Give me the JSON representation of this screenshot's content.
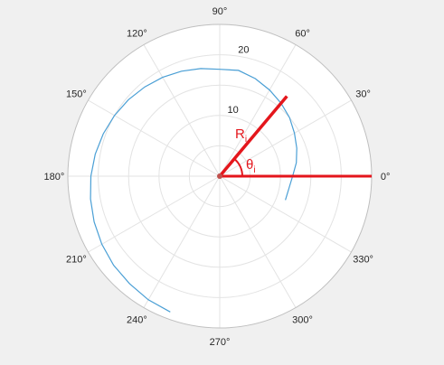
{
  "chart_data": {
    "type": "line",
    "polar": true,
    "theta_ticks": [
      "0°",
      "30°",
      "60°",
      "90°",
      "120°",
      "150°",
      "180°",
      "210°",
      "240°",
      "270°",
      "300°",
      "330°"
    ],
    "r_ticks": [
      "10",
      "20"
    ],
    "rlim": [
      0,
      25
    ],
    "grid": true,
    "series": [
      {
        "color": "#4a9fd5",
        "theta_deg": [
          -20,
          0,
          10,
          20,
          30,
          40,
          50,
          60,
          70,
          80,
          90,
          100,
          110,
          120,
          130,
          140,
          150,
          160,
          170,
          180,
          190,
          200,
          210,
          220,
          230,
          240,
          250
        ],
        "r": [
          11.5,
          12.0,
          12.8,
          13.5,
          14.2,
          15.0,
          15.7,
          16.4,
          17.1,
          17.7,
          17.6,
          18.0,
          18.4,
          18.8,
          19.2,
          19.6,
          20.0,
          20.4,
          20.8,
          21.2,
          21.6,
          22.0,
          22.4,
          22.8,
          23.1,
          23.5,
          23.8
        ]
      }
    ],
    "annotations": {
      "color": "#e4161c",
      "radius_label": "Ri",
      "angle_label": "θi",
      "radius_theta_deg": 50,
      "radius_r": 17.2,
      "zero_ray_r": 25
    }
  }
}
